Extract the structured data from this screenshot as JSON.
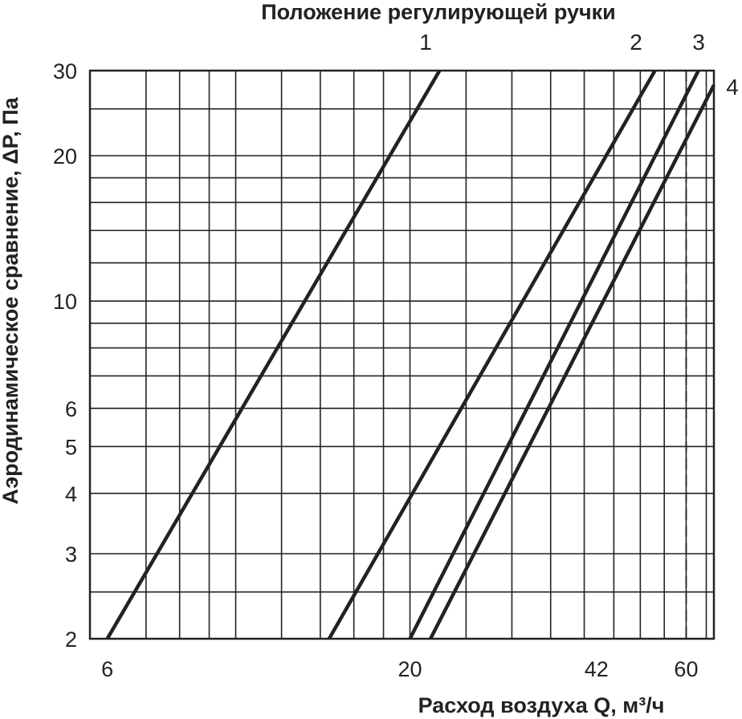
{
  "chart_data": {
    "type": "line",
    "title": "Положение регулирующей ручки",
    "xlabel": "Расход воздуха Q, м³/ч",
    "ylabel": "Аэродинамическое сравнение, ΔP, Па",
    "x_scale": "log",
    "y_scale": "log",
    "xlim": [
      5.6,
      67
    ],
    "ylim": [
      2,
      30
    ],
    "x_ticks": [
      "6",
      "20",
      "42",
      "60"
    ],
    "y_ticks": [
      "2",
      "3",
      "4",
      "5",
      "6",
      "10",
      "20",
      "30"
    ],
    "grid": true,
    "series": [
      {
        "name": "1",
        "x": [
          6,
          22.5
        ],
        "y": [
          2,
          30
        ]
      },
      {
        "name": "2",
        "x": [
          14.5,
          53
        ],
        "y": [
          2,
          30
        ]
      },
      {
        "name": "3",
        "x": [
          20,
          63
        ],
        "y": [
          2,
          30
        ]
      },
      {
        "name": "4",
        "x": [
          21.7,
          67
        ],
        "y": [
          2,
          28
        ]
      }
    ],
    "reference_line": {
      "x": 60,
      "style": "dashed"
    }
  }
}
